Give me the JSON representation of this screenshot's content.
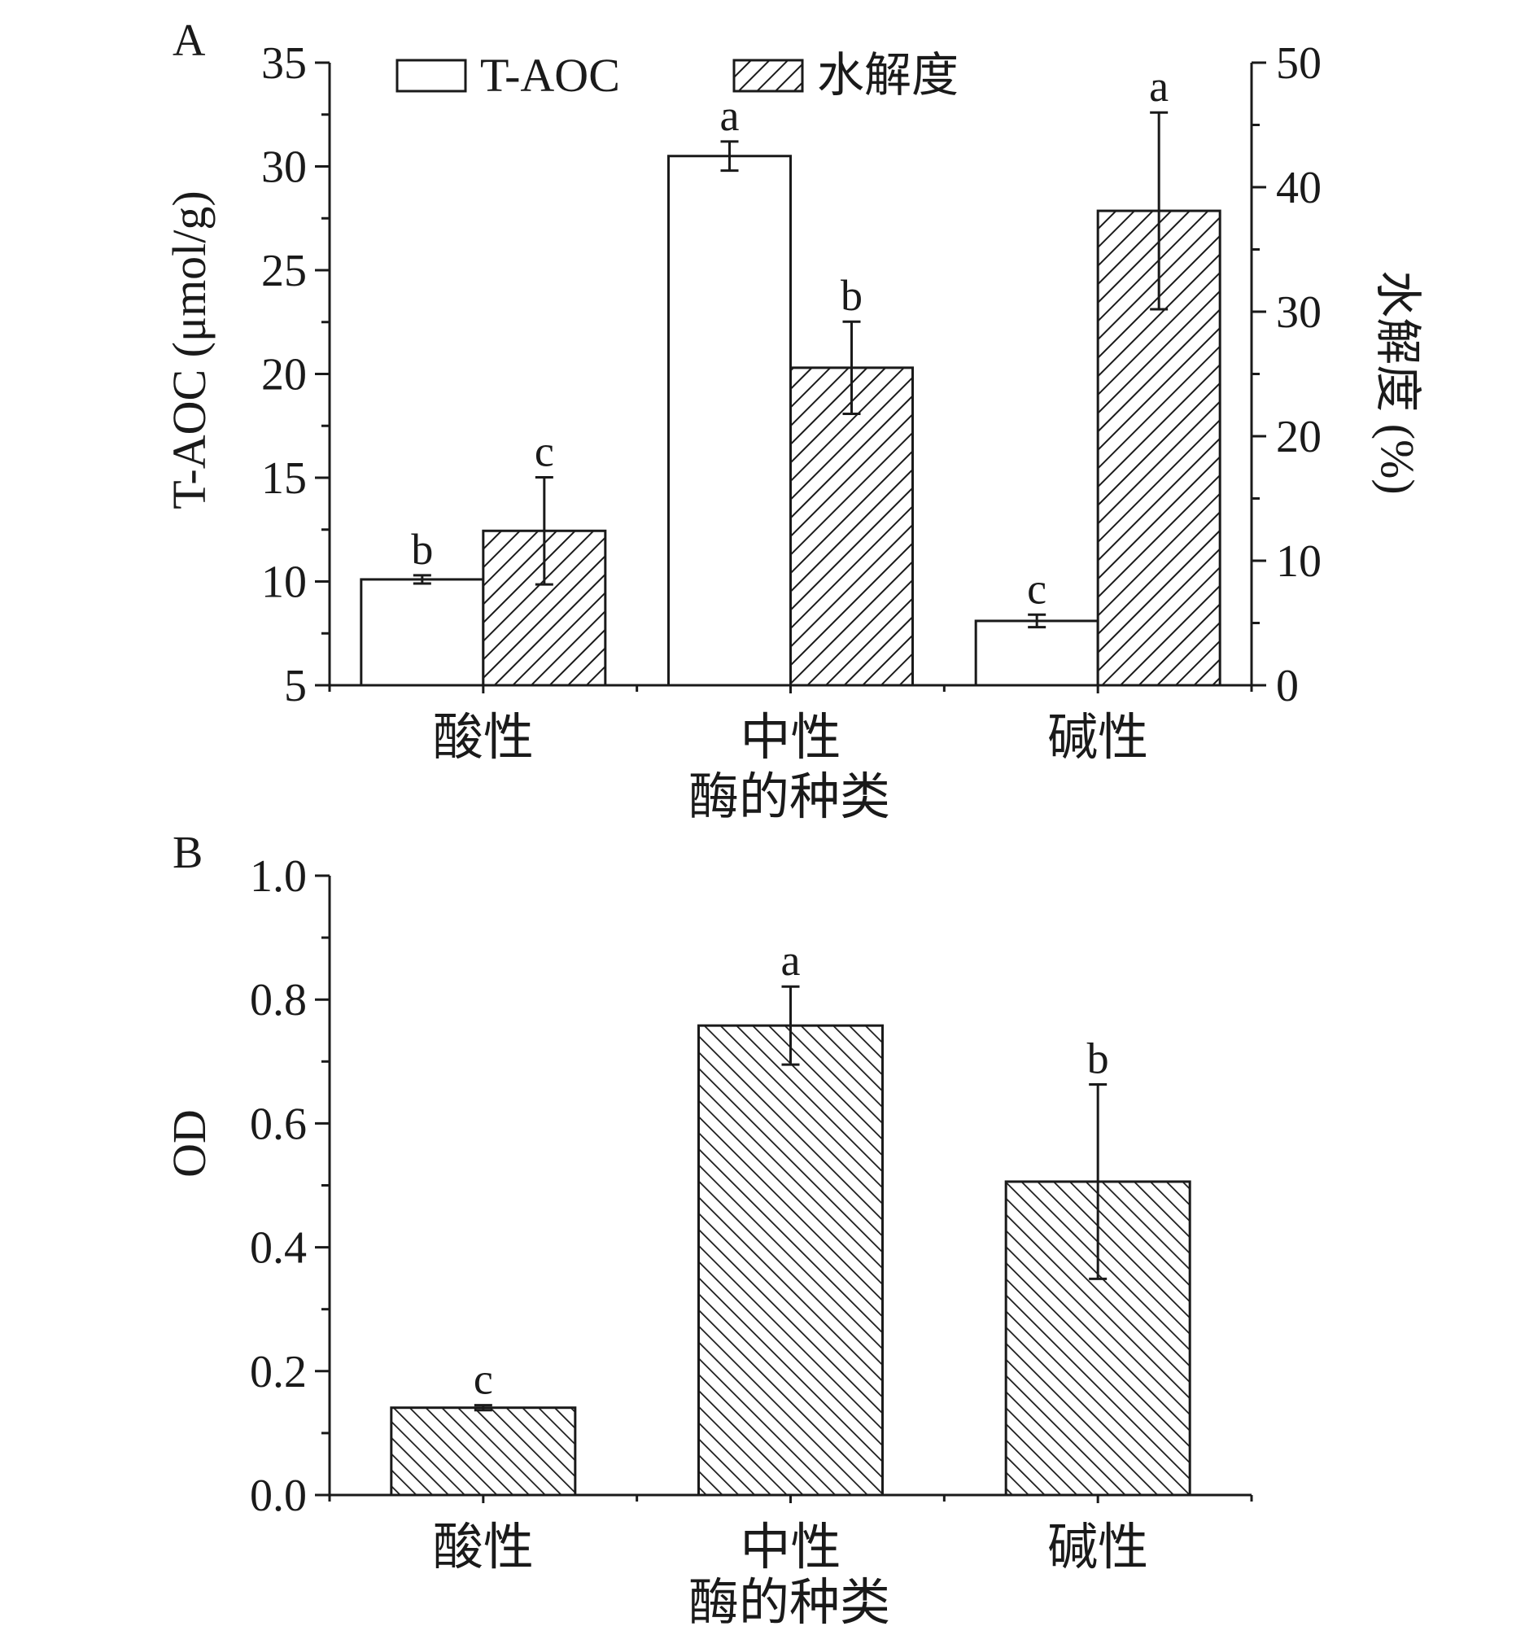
{
  "chart_data": [
    {
      "panel": "A",
      "type": "bar",
      "categories": [
        "酸性",
        "中性",
        "碱性"
      ],
      "xlabel": "酶的种类",
      "ylabel": "T-AOC (μmol/g)",
      "ylim": [
        5,
        35
      ],
      "yticks": [
        "5",
        "10",
        "15",
        "20",
        "25",
        "30",
        "35"
      ],
      "y2label": "水解度 (%)",
      "y2lim": [
        0,
        50
      ],
      "y2ticks": [
        "0",
        "10",
        "20",
        "30",
        "40",
        "50"
      ],
      "legend_position": "top-left",
      "series": [
        {
          "name": "T-AOC",
          "axis": "left",
          "values": [
            10.1,
            30.5,
            8.1
          ],
          "errors": [
            0.2,
            0.7,
            0.3
          ],
          "sig": [
            "b",
            "a",
            "c"
          ]
        },
        {
          "name": "水解度",
          "axis": "right",
          "values": [
            12.4,
            25.5,
            38.1
          ],
          "errors": [
            4.3,
            3.7,
            7.9
          ],
          "sig": [
            "c",
            "b",
            "a"
          ]
        }
      ]
    },
    {
      "panel": "B",
      "type": "bar",
      "categories": [
        "酸性",
        "中性",
        "碱性"
      ],
      "xlabel": "酶的种类",
      "ylabel": "OD",
      "ylim": [
        0.0,
        1.0
      ],
      "yticks": [
        "0.0",
        "0.2",
        "0.4",
        "0.6",
        "0.8",
        "1.0"
      ],
      "series": [
        {
          "values": [
            0.141,
            0.758,
            0.506
          ],
          "errors": [
            0.004,
            0.063,
            0.157
          ],
          "sig": [
            "c",
            "a",
            "b"
          ]
        }
      ]
    }
  ]
}
